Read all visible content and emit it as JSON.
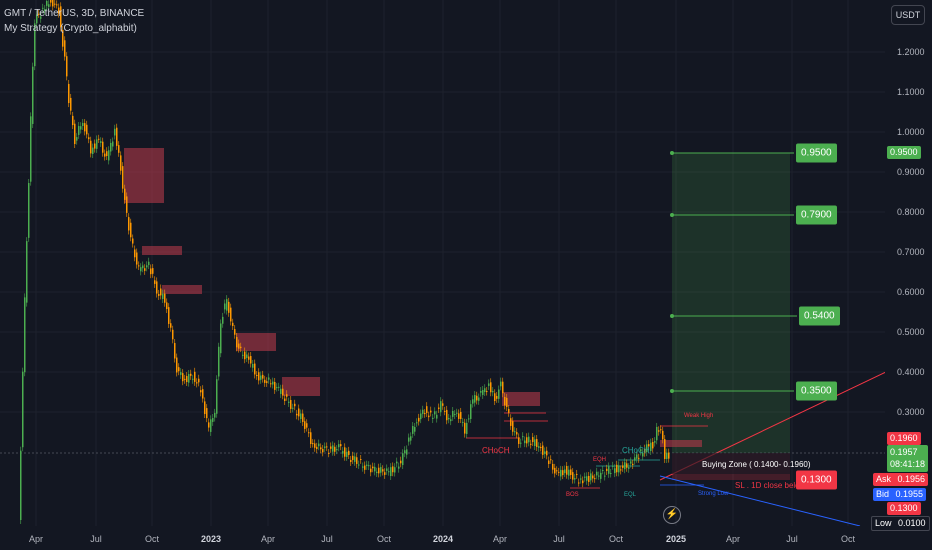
{
  "header": {
    "symbol_line": "GMT / TetherUS, 3D, BINANCE",
    "strategy_line": "My Strategy (Crypto_alphabit)"
  },
  "price_axis": {
    "currency": "USDT",
    "ticks": [
      "1.2000",
      "1.1000",
      "1.0000",
      "0.9000",
      "0.8000",
      "0.7000",
      "0.6000",
      "0.5000",
      "0.4000",
      "0.3000"
    ],
    "target_tag": "0.9500",
    "tag_upper": "0.1960",
    "last_price": "0.1957",
    "countdown": "08:41:18",
    "ask_label": "Ask",
    "ask_value": "0.1956",
    "bid_label": "Bid",
    "bid_value": "0.1955",
    "sl_tag": "0.1300",
    "low_label": "Low",
    "low_value": "0.0100"
  },
  "time_axis": {
    "labels": [
      "Apr",
      "Jul",
      "Oct",
      "2023",
      "Apr",
      "Jul",
      "Oct",
      "2024",
      "Apr",
      "Jul",
      "Oct",
      "2025",
      "Apr",
      "Jul",
      "Oct"
    ]
  },
  "annotations": {
    "targets": [
      "0.9500",
      "0.7900",
      "0.5400",
      "0.3500"
    ],
    "stop_tag": "0.1300",
    "buying_zone": "Buying Zone ( 0.1400- 0.1960)",
    "sl_note": "SL . 1D close below",
    "choch_left": "CHoCH",
    "choch_right": "CHoCH",
    "weak_high": "Weak High",
    "strong_low": "Strong Low",
    "bos": "BOS",
    "eqh": "EQH",
    "eql": "EQL"
  },
  "colors": {
    "background": "#131722",
    "bull": "#4caf50",
    "bear": "#ff9800",
    "target_green": "#4caf50",
    "stop_red": "#f23645",
    "order_block": "#b2384a",
    "ask_red": "#f23645",
    "bid_blue": "#2962ff"
  },
  "icons": {
    "replay": "lightning-icon"
  }
}
